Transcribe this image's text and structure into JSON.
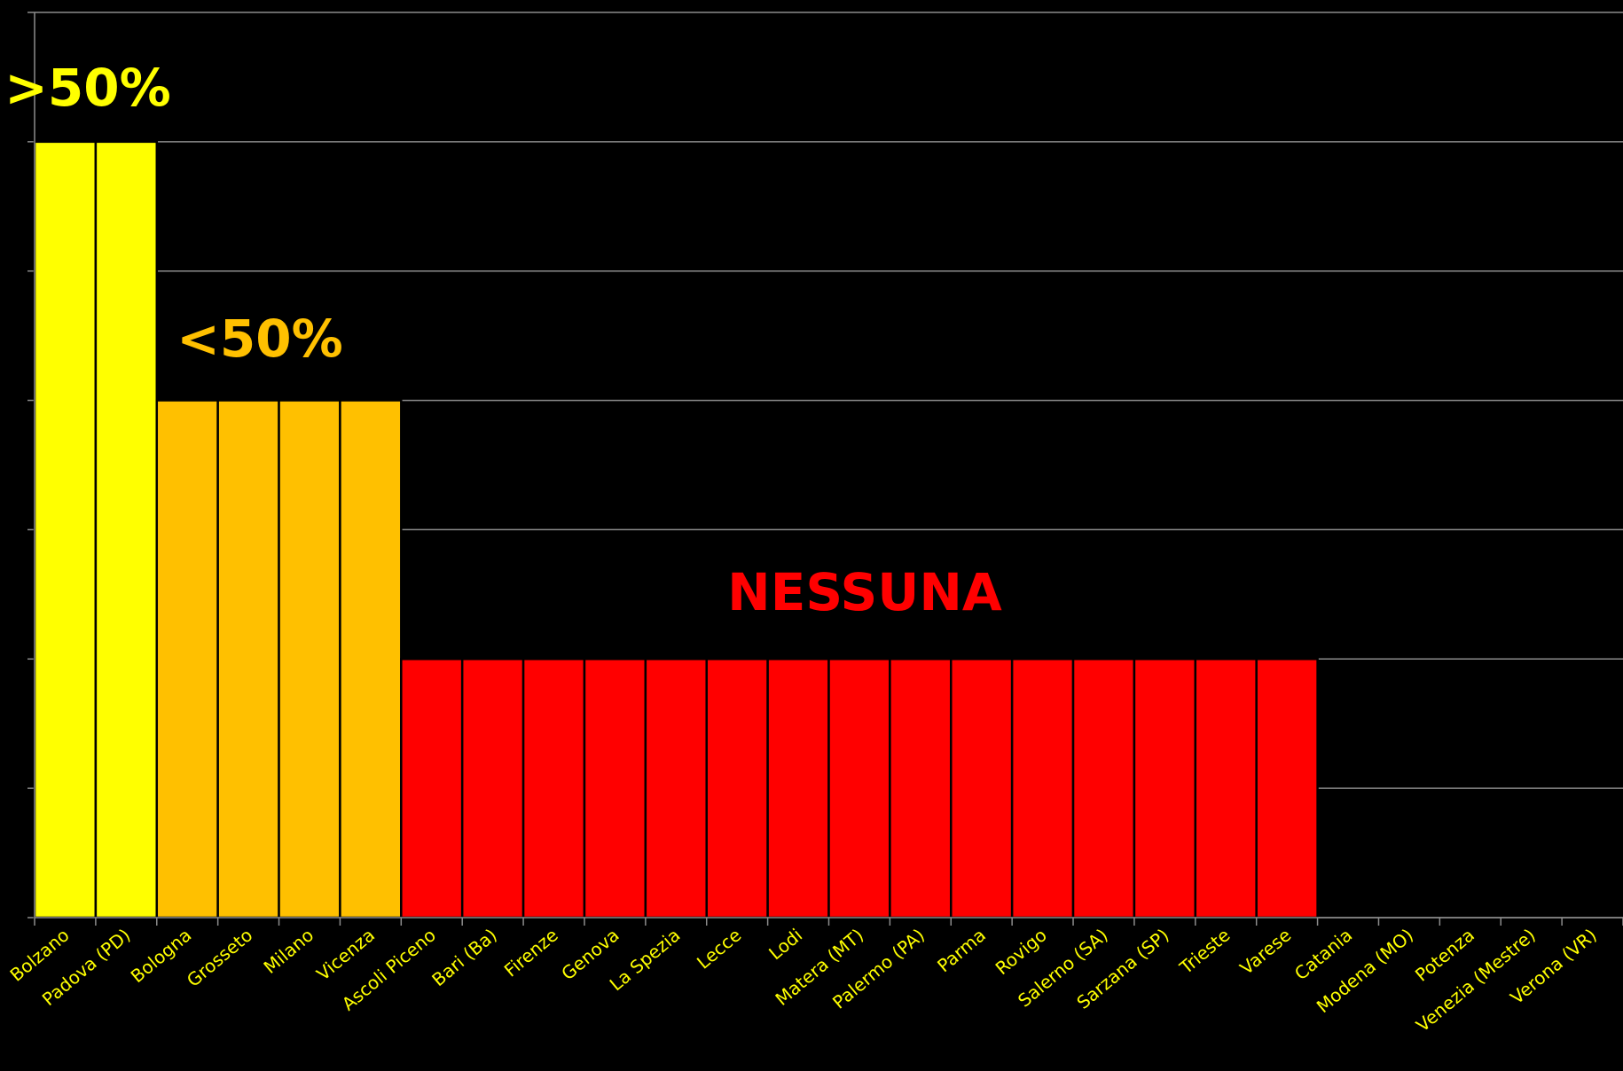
{
  "chart_data": {
    "type": "bar",
    "categories": [
      "Bolzano",
      "Padova (PD)",
      "Bologna",
      "Grosseto",
      "Milano",
      "Vicenza",
      "Ascoli Piceno",
      "Bari (Ba)",
      "Firenze",
      "Genova",
      "La Spezia",
      "Lecce",
      "Lodi",
      "Matera (MT)",
      "Palermo (PA)",
      "Parma",
      "Rovigo",
      "Salerno (SA)",
      "Sarzana (SP)",
      "Trieste",
      "Varese",
      "Catania",
      "Modena (MO)",
      "Potenza",
      "Venezia (Mestre)",
      "Verona (VR)"
    ],
    "values": [
      6,
      6,
      4,
      4,
      4,
      4,
      2,
      2,
      2,
      2,
      2,
      2,
      2,
      2,
      2,
      2,
      2,
      2,
      2,
      2,
      2,
      0,
      0,
      0,
      0,
      0
    ],
    "colors": [
      "#ffff00",
      "#ffff00",
      "#ffc000",
      "#ffc000",
      "#ffc000",
      "#ffc000",
      "#ff0000",
      "#ff0000",
      "#ff0000",
      "#ff0000",
      "#ff0000",
      "#ff0000",
      "#ff0000",
      "#ff0000",
      "#ff0000",
      "#ff0000",
      "#ff0000",
      "#ff0000",
      "#ff0000",
      "#ff0000",
      "#ff0000",
      "#ff0000",
      "#ff0000",
      "#ff0000",
      "#ff0000",
      "#ff0000"
    ],
    "ylim": [
      0,
      7
    ],
    "yticks": [
      0,
      1,
      2,
      3,
      4,
      5,
      6,
      7
    ],
    "grid": true,
    "annotations": [
      {
        "text": ">50%",
        "color": "#ffff00"
      },
      {
        "text": "<50%",
        "color": "#ffc000"
      },
      {
        "text": "NESSUNA",
        "color": "#ff0000"
      }
    ]
  }
}
